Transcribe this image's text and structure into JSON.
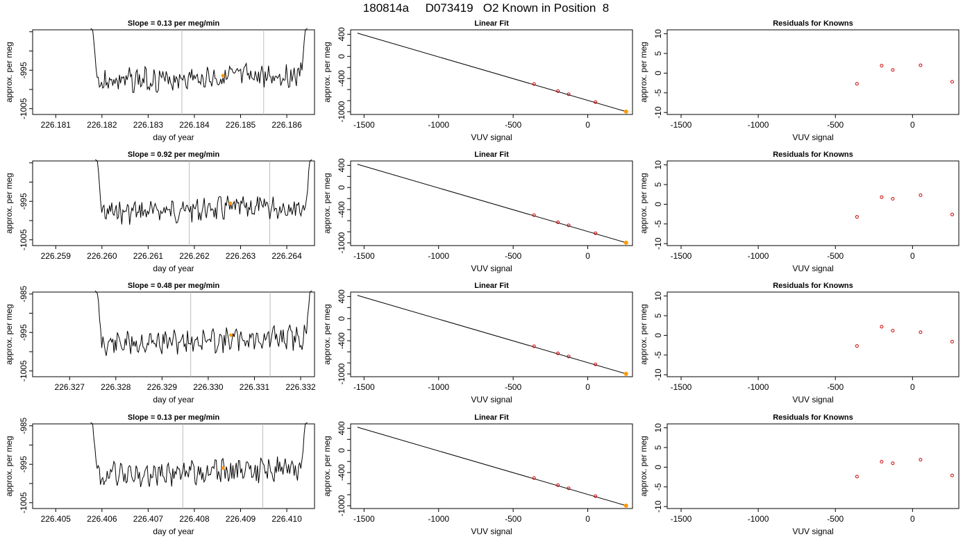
{
  "page": {
    "title": "180814a     D073419   O2 Known in Position  8"
  },
  "colors": {
    "line": "#000000",
    "vline": "#bbbbbb",
    "point": "#cc0000",
    "highlight": "#ff9900"
  },
  "chart_data": [
    {
      "type": "line",
      "title": "Slope =  0.13  per meg/min",
      "xlabel": "day of year",
      "ylabel": "approx. per meg",
      "xlim": [
        226.1805,
        226.1866
      ],
      "ylim": [
        -1006.5,
        -984.5
      ],
      "xticks": [
        "226.181",
        "226.182",
        "226.183",
        "226.184",
        "226.185",
        "226.186"
      ],
      "yticks": [
        "-995",
        "-1005"
      ],
      "vlines": [
        226.18373,
        226.1855
      ],
      "highlight": [
        226.18462,
        -996.4
      ],
      "trace_start": 226.1818,
      "trace_end": 226.1864,
      "seed": 3
    },
    {
      "type": "scatter",
      "title": "Linear Fit",
      "xlabel": "VUV signal",
      "ylabel": "approx. per meg",
      "xlim": [
        -1590,
        300
      ],
      "ylim": [
        -1050,
        480
      ],
      "xticks": [
        "-1500",
        "-1000",
        "-500",
        "0"
      ],
      "yticks": [
        "400",
        "0",
        "-400",
        "-1000"
      ],
      "line": [
        [
          -1545,
          420
        ],
        [
          260,
          -1000
        ]
      ],
      "points": [
        [
          -360,
          -500
        ],
        [
          -200,
          -628
        ],
        [
          -128,
          -684
        ],
        [
          52,
          -827
        ],
        [
          257,
          -998
        ]
      ]
    },
    {
      "type": "scatter",
      "title": "Residuals for Knowns",
      "xlabel": "VUV signal",
      "ylabel": "approx. per meg",
      "xlim": [
        -1590,
        300
      ],
      "ylim": [
        -10.5,
        11
      ],
      "xticks": [
        "-1500",
        "-1000",
        "-500",
        "0"
      ],
      "yticks": [
        "10",
        "5",
        "0",
        "-5",
        "-10"
      ],
      "points": [
        [
          -360,
          -2.7
        ],
        [
          -200,
          1.9
        ],
        [
          -128,
          0.8
        ],
        [
          52,
          2.0
        ],
        [
          257,
          -2.2
        ]
      ]
    },
    {
      "type": "line",
      "title": "Slope =  0.92  per meg/min",
      "xlabel": "day of year",
      "ylabel": "approx. per meg",
      "xlim": [
        226.2585,
        226.2646
      ],
      "ylim": [
        -1006.5,
        -984.5
      ],
      "xticks": [
        "226.259",
        "226.260",
        "226.261",
        "226.262",
        "226.263",
        "226.264"
      ],
      "yticks": [
        "-995",
        "-1005"
      ],
      "vlines": [
        226.26189,
        226.26363
      ],
      "highlight": [
        226.26278,
        -995.5
      ],
      "trace_start": 226.2599,
      "trace_end": 226.2645,
      "seed": 7
    },
    {
      "type": "scatter",
      "title": "Linear Fit",
      "xlabel": "VUV signal",
      "ylabel": "approx. per meg",
      "xlim": [
        -1590,
        300
      ],
      "ylim": [
        -1050,
        480
      ],
      "xticks": [
        "-1500",
        "-1000",
        "-500",
        "0"
      ],
      "yticks": [
        "400",
        "0",
        "-400",
        "-1000"
      ],
      "line": [
        [
          -1545,
          420
        ],
        [
          260,
          -1000
        ]
      ],
      "points": [
        [
          -360,
          -500
        ],
        [
          -200,
          -628
        ],
        [
          -128,
          -684
        ],
        [
          52,
          -827
        ],
        [
          257,
          -998
        ]
      ]
    },
    {
      "type": "scatter",
      "title": "Residuals for Knowns",
      "xlabel": "VUV signal",
      "ylabel": "approx. per meg",
      "xlim": [
        -1590,
        300
      ],
      "ylim": [
        -10.5,
        11
      ],
      "xticks": [
        "-1500",
        "-1000",
        "-500",
        "0"
      ],
      "yticks": [
        "10",
        "5",
        "0",
        "-5",
        "-10"
      ],
      "points": [
        [
          -360,
          -3.2
        ],
        [
          -200,
          1.8
        ],
        [
          -128,
          1.4
        ],
        [
          52,
          2.3
        ],
        [
          257,
          -2.6
        ]
      ]
    },
    {
      "type": "line",
      "title": "Slope =  0.48  per meg/min",
      "xlabel": "day of year",
      "ylabel": "approx. per meg",
      "xlim": [
        226.3262,
        226.3323
      ],
      "ylim": [
        -1006.5,
        -984.5
      ],
      "xticks": [
        "226.327",
        "226.328",
        "226.329",
        "226.330",
        "226.331",
        "226.332"
      ],
      "yticks": [
        "-985",
        "-995",
        "-1005"
      ],
      "vlines": [
        226.32962,
        226.33134
      ],
      "highlight": [
        226.33049,
        -995.7
      ],
      "trace_start": 226.3276,
      "trace_end": 226.3322,
      "seed": 11
    },
    {
      "type": "scatter",
      "title": "Linear Fit",
      "xlabel": "VUV signal",
      "ylabel": "approx. per meg",
      "xlim": [
        -1590,
        300
      ],
      "ylim": [
        -1050,
        480
      ],
      "xticks": [
        "-1500",
        "-1000",
        "-500",
        "0"
      ],
      "yticks": [
        "400",
        "0",
        "-400",
        "-1000"
      ],
      "line": [
        [
          -1545,
          420
        ],
        [
          260,
          -1000
        ]
      ],
      "points": [
        [
          -360,
          -500
        ],
        [
          -200,
          -628
        ],
        [
          -128,
          -684
        ],
        [
          52,
          -827
        ],
        [
          257,
          -998
        ]
      ]
    },
    {
      "type": "scatter",
      "title": "Residuals for Knowns",
      "xlabel": "VUV signal",
      "ylabel": "approx. per meg",
      "xlim": [
        -1590,
        300
      ],
      "ylim": [
        -10.5,
        11
      ],
      "xticks": [
        "-1500",
        "-1000",
        "-500",
        "0"
      ],
      "yticks": [
        "10",
        "5",
        "0",
        "-5",
        "-10"
      ],
      "points": [
        [
          -360,
          -2.7
        ],
        [
          -200,
          2.2
        ],
        [
          -128,
          1.2
        ],
        [
          52,
          0.8
        ],
        [
          257,
          -1.6
        ]
      ]
    },
    {
      "type": "line",
      "title": "Slope =  0.13  per meg/min",
      "xlabel": "day of year",
      "ylabel": "approx. per meg",
      "xlim": [
        226.4045,
        226.4106
      ],
      "ylim": [
        -1006.5,
        -984.5
      ],
      "xticks": [
        "226.405",
        "226.406",
        "226.407",
        "226.408",
        "226.409",
        "226.410"
      ],
      "yticks": [
        "-985",
        "-995",
        "-1005"
      ],
      "vlines": [
        226.40775,
        226.40948
      ],
      "highlight": [
        226.40862,
        -996.0
      ],
      "trace_start": 226.4058,
      "trace_end": 226.4104,
      "seed": 19
    },
    {
      "type": "scatter",
      "title": "Linear Fit",
      "xlabel": "VUV signal",
      "ylabel": "approx. per meg",
      "xlim": [
        -1590,
        300
      ],
      "ylim": [
        -1050,
        480
      ],
      "xticks": [
        "-1500",
        "-1000",
        "-500",
        "0"
      ],
      "yticks": [
        "400",
        "0",
        "-400",
        "-1000"
      ],
      "line": [
        [
          -1545,
          420
        ],
        [
          260,
          -1000
        ]
      ],
      "points": [
        [
          -360,
          -500
        ],
        [
          -200,
          -628
        ],
        [
          -128,
          -684
        ],
        [
          52,
          -827
        ],
        [
          257,
          -998
        ]
      ]
    },
    {
      "type": "scatter",
      "title": "Residuals for Knowns",
      "xlabel": "VUV signal",
      "ylabel": "approx. per meg",
      "xlim": [
        -1590,
        300
      ],
      "ylim": [
        -10.5,
        11
      ],
      "xticks": [
        "-1500",
        "-1000",
        "-500",
        "0"
      ],
      "yticks": [
        "10",
        "5",
        "0",
        "-5",
        "-10"
      ],
      "points": [
        [
          -360,
          -2.4
        ],
        [
          -200,
          1.4
        ],
        [
          -128,
          1.0
        ],
        [
          52,
          1.9
        ],
        [
          257,
          -2.1
        ]
      ]
    }
  ]
}
